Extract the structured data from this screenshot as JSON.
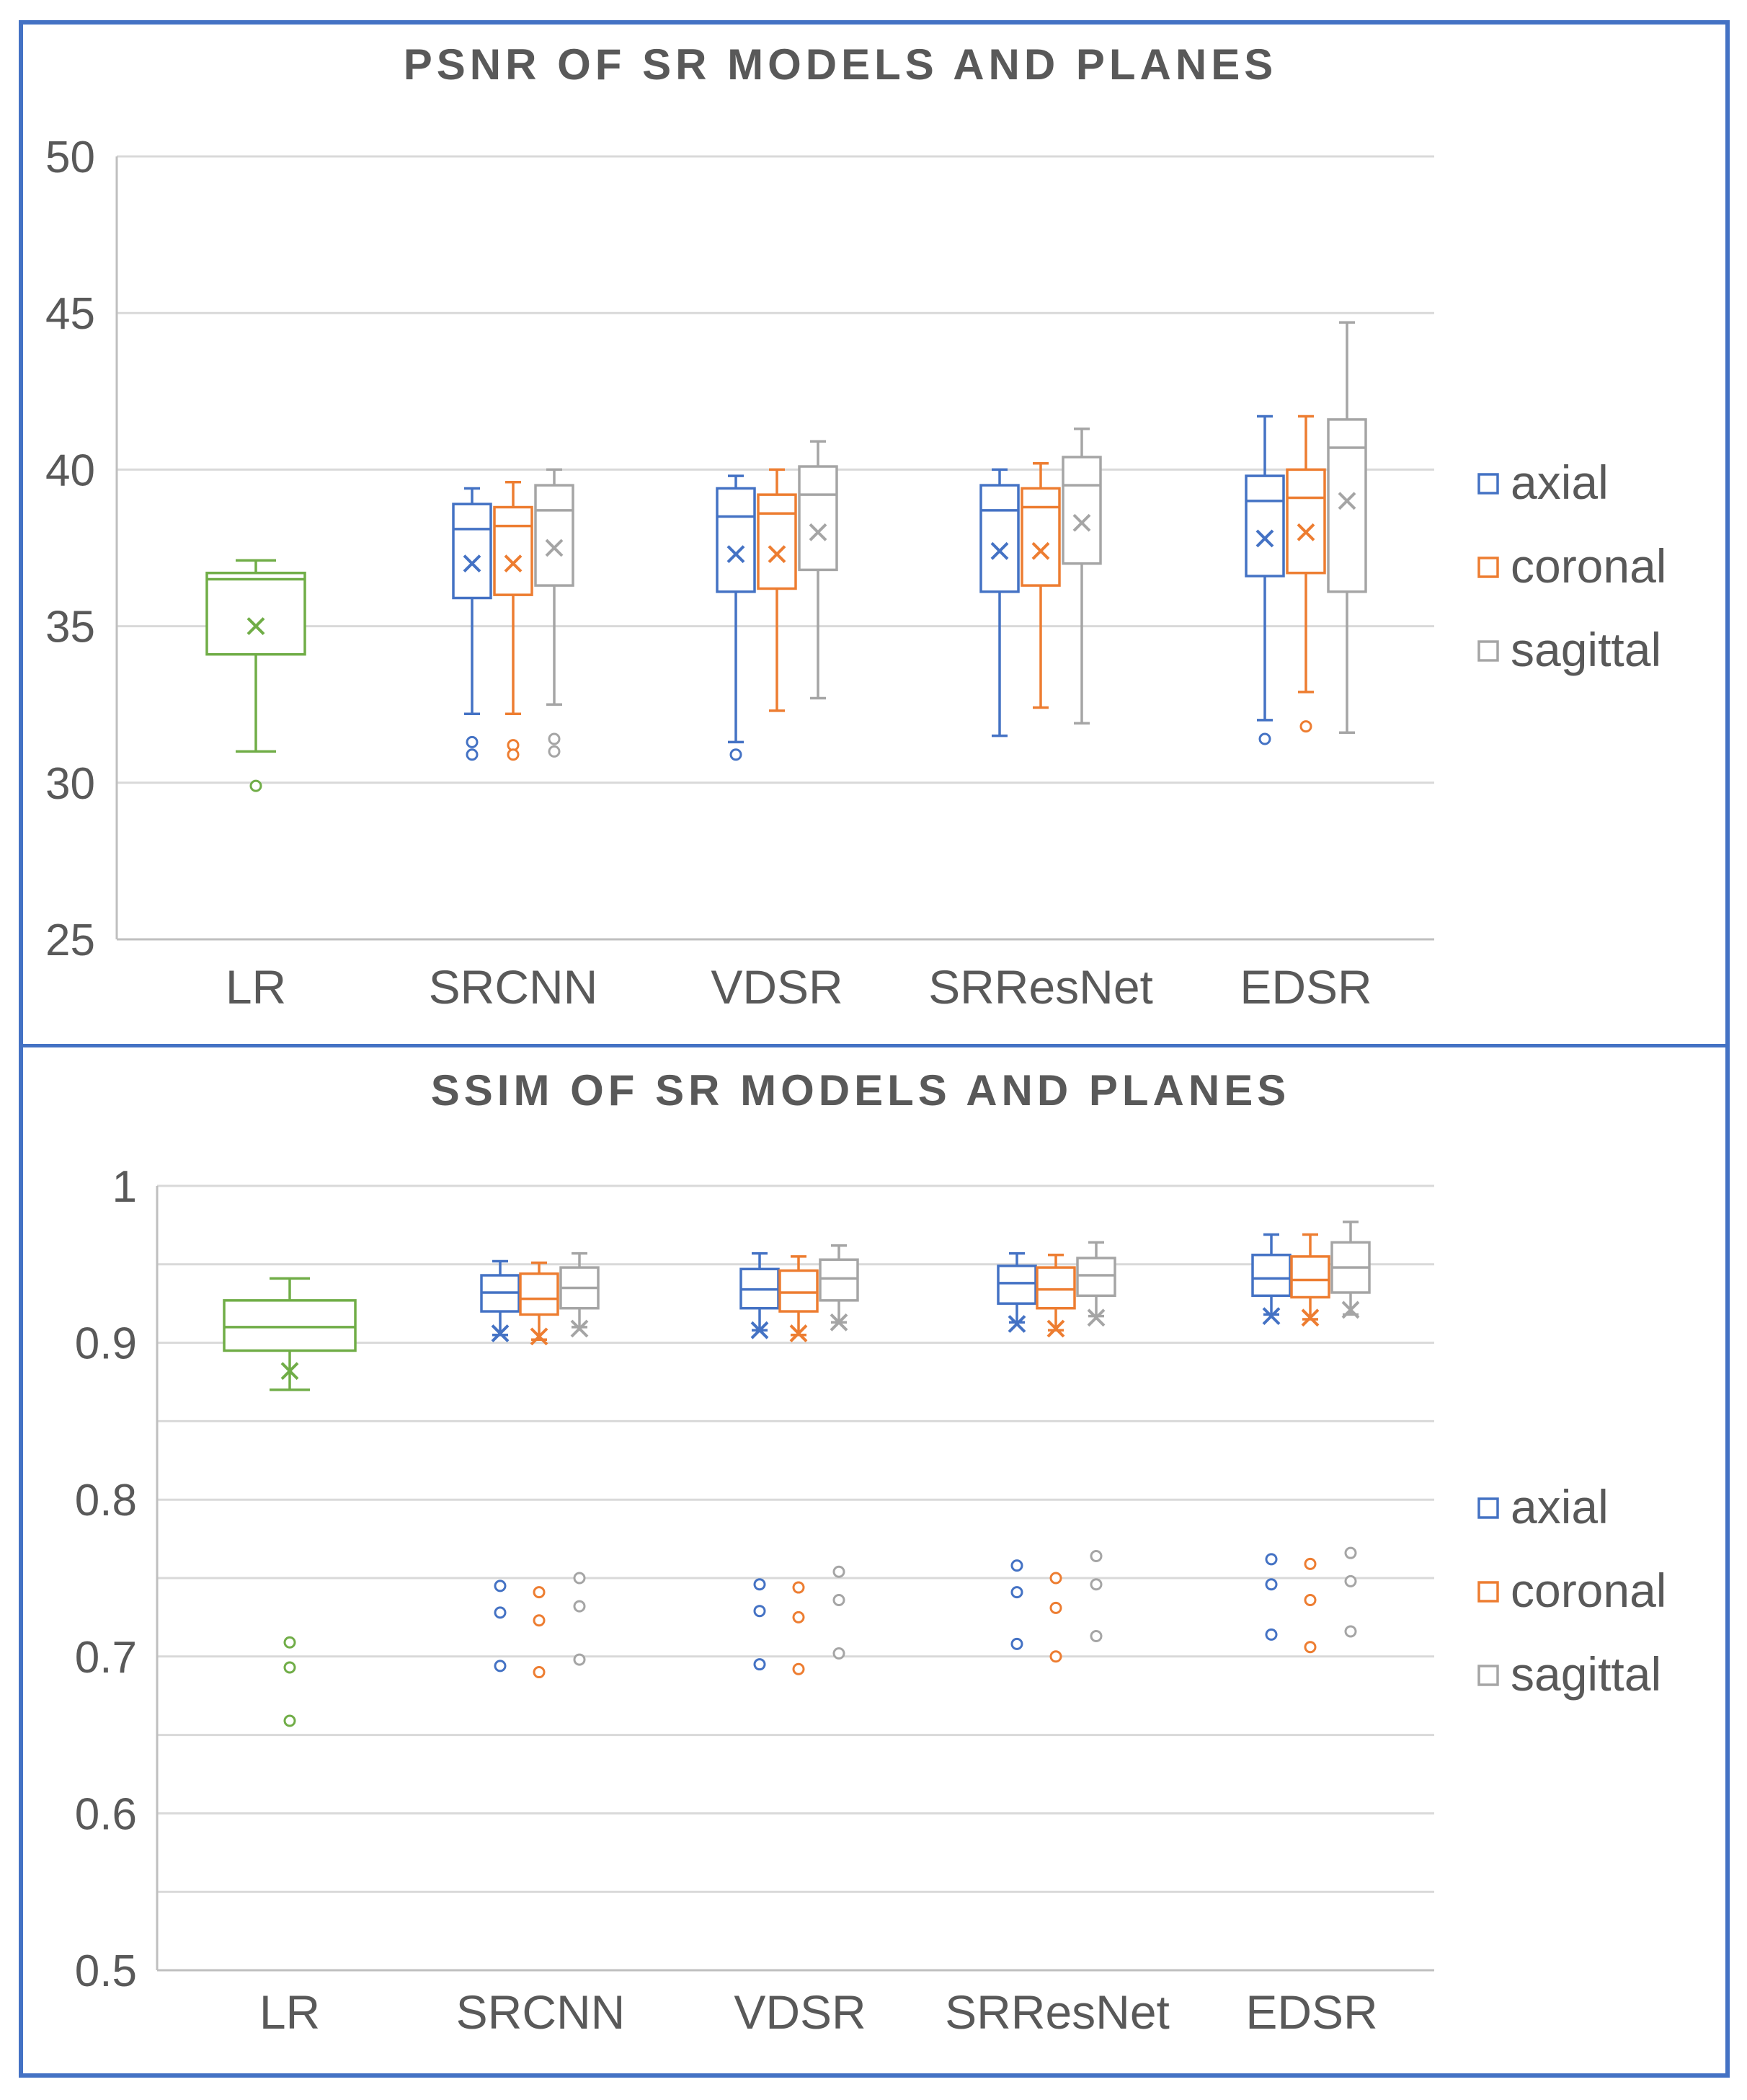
{
  "colors": {
    "axial": "#4472C4",
    "coronal": "#ED7D31",
    "sagittal": "#A5A5A5",
    "lr": "#70AD47",
    "grid": "#D9D9D9",
    "axis": "#BFBFBF",
    "text": "#595959",
    "frame": "#4472C4"
  },
  "chart_data": [
    {
      "type": "box",
      "title": "PSNR OF SR MODELS AND PLANES",
      "ylim": [
        25,
        50
      ],
      "yticks": [
        25,
        30,
        35,
        40,
        45,
        50
      ],
      "ytick_labels": [
        "25",
        "30",
        "35",
        "40",
        "45",
        "50"
      ],
      "gridlines": [
        30,
        35,
        40,
        45,
        50
      ],
      "categories": [
        "LR",
        "SRCNN",
        "VDSR",
        "SRResNet",
        "EDSR"
      ],
      "legend": [
        "axial",
        "coronal",
        "sagittal"
      ],
      "legend_position": "right",
      "boxes": [
        {
          "category": "LR",
          "series": "lr",
          "whisker_low": 31.0,
          "q1": 34.1,
          "median": 36.5,
          "q3": 36.7,
          "whisker_high": 37.1,
          "mean": 35.0,
          "outliers": [
            29.9
          ]
        },
        {
          "category": "SRCNN",
          "series": "axial",
          "whisker_low": 32.2,
          "q1": 35.9,
          "median": 38.1,
          "q3": 38.9,
          "whisker_high": 39.4,
          "mean": 37.0,
          "outliers": [
            31.3,
            30.9
          ]
        },
        {
          "category": "SRCNN",
          "series": "coronal",
          "whisker_low": 32.2,
          "q1": 36.0,
          "median": 38.2,
          "q3": 38.8,
          "whisker_high": 39.6,
          "mean": 37.0,
          "outliers": [
            31.2,
            30.9
          ]
        },
        {
          "category": "SRCNN",
          "series": "sagittal",
          "whisker_low": 32.5,
          "q1": 36.3,
          "median": 38.7,
          "q3": 39.5,
          "whisker_high": 40.0,
          "mean": 37.5,
          "outliers": [
            31.4,
            31.0
          ]
        },
        {
          "category": "VDSR",
          "series": "axial",
          "whisker_low": 31.3,
          "q1": 36.1,
          "median": 38.5,
          "q3": 39.4,
          "whisker_high": 39.8,
          "mean": 37.3,
          "outliers": [
            30.9
          ]
        },
        {
          "category": "VDSR",
          "series": "coronal",
          "whisker_low": 32.3,
          "q1": 36.2,
          "median": 38.6,
          "q3": 39.2,
          "whisker_high": 40.0,
          "mean": 37.3,
          "outliers": []
        },
        {
          "category": "VDSR",
          "series": "sagittal",
          "whisker_low": 32.7,
          "q1": 36.8,
          "median": 39.2,
          "q3": 40.1,
          "whisker_high": 40.9,
          "mean": 38.0,
          "outliers": []
        },
        {
          "category": "SRResNet",
          "series": "axial",
          "whisker_low": 31.5,
          "q1": 36.1,
          "median": 38.7,
          "q3": 39.5,
          "whisker_high": 40.0,
          "mean": 37.4,
          "outliers": []
        },
        {
          "category": "SRResNet",
          "series": "coronal",
          "whisker_low": 32.4,
          "q1": 36.3,
          "median": 38.8,
          "q3": 39.4,
          "whisker_high": 40.2,
          "mean": 37.4,
          "outliers": []
        },
        {
          "category": "SRResNet",
          "series": "sagittal",
          "whisker_low": 31.9,
          "q1": 37.0,
          "median": 39.5,
          "q3": 40.4,
          "whisker_high": 41.3,
          "mean": 38.3,
          "outliers": []
        },
        {
          "category": "EDSR",
          "series": "axial",
          "whisker_low": 32.0,
          "q1": 36.6,
          "median": 39.0,
          "q3": 39.8,
          "whisker_high": 41.7,
          "mean": 37.8,
          "outliers": [
            31.4
          ]
        },
        {
          "category": "EDSR",
          "series": "coronal",
          "whisker_low": 32.9,
          "q1": 36.7,
          "median": 39.1,
          "q3": 40.0,
          "whisker_high": 41.7,
          "mean": 38.0,
          "outliers": [
            31.8
          ]
        },
        {
          "category": "EDSR",
          "series": "sagittal",
          "whisker_low": 31.6,
          "q1": 36.1,
          "median": 40.7,
          "q3": 41.6,
          "whisker_high": 44.7,
          "mean": 39.0,
          "outliers": []
        }
      ]
    },
    {
      "type": "box",
      "title": "SSIM OF SR MODELS AND PLANES",
      "ylim": [
        0.5,
        1.0
      ],
      "yticks": [
        0.5,
        0.6,
        0.7,
        0.8,
        0.9,
        1.0
      ],
      "ytick_labels": [
        "0.5",
        "0.6",
        "0.7",
        "0.8",
        "0.9",
        "1"
      ],
      "gridlines": [
        0.55,
        0.6,
        0.65,
        0.7,
        0.75,
        0.8,
        0.85,
        0.9,
        0.95,
        1.0
      ],
      "categories": [
        "LR",
        "SRCNN",
        "VDSR",
        "SRResNet",
        "EDSR"
      ],
      "legend": [
        "axial",
        "coronal",
        "sagittal"
      ],
      "legend_position": "right",
      "boxes": [
        {
          "category": "LR",
          "series": "lr",
          "whisker_low": 0.87,
          "q1": 0.895,
          "median": 0.91,
          "q3": 0.927,
          "whisker_high": 0.941,
          "mean": 0.882,
          "outliers": [
            0.709,
            0.693,
            0.659
          ]
        },
        {
          "category": "SRCNN",
          "series": "axial",
          "whisker_low": 0.905,
          "q1": 0.92,
          "median": 0.932,
          "q3": 0.943,
          "whisker_high": 0.952,
          "mean": 0.906,
          "outliers": [
            0.745,
            0.728,
            0.694
          ]
        },
        {
          "category": "SRCNN",
          "series": "coronal",
          "whisker_low": 0.902,
          "q1": 0.918,
          "median": 0.928,
          "q3": 0.944,
          "whisker_high": 0.951,
          "mean": 0.904,
          "outliers": [
            0.741,
            0.723,
            0.69
          ]
        },
        {
          "category": "SRCNN",
          "series": "sagittal",
          "whisker_low": 0.91,
          "q1": 0.922,
          "median": 0.935,
          "q3": 0.948,
          "whisker_high": 0.957,
          "mean": 0.909,
          "outliers": [
            0.75,
            0.732,
            0.698
          ]
        },
        {
          "category": "VDSR",
          "series": "axial",
          "whisker_low": 0.908,
          "q1": 0.922,
          "median": 0.934,
          "q3": 0.947,
          "whisker_high": 0.957,
          "mean": 0.908,
          "outliers": [
            0.746,
            0.729,
            0.695
          ]
        },
        {
          "category": "VDSR",
          "series": "coronal",
          "whisker_low": 0.905,
          "q1": 0.92,
          "median": 0.932,
          "q3": 0.946,
          "whisker_high": 0.955,
          "mean": 0.906,
          "outliers": [
            0.744,
            0.725,
            0.692
          ]
        },
        {
          "category": "VDSR",
          "series": "sagittal",
          "whisker_low": 0.913,
          "q1": 0.927,
          "median": 0.941,
          "q3": 0.953,
          "whisker_high": 0.962,
          "mean": 0.913,
          "outliers": [
            0.754,
            0.736,
            0.702
          ]
        },
        {
          "category": "SRResNet",
          "series": "axial",
          "whisker_low": 0.913,
          "q1": 0.925,
          "median": 0.938,
          "q3": 0.949,
          "whisker_high": 0.957,
          "mean": 0.912,
          "outliers": [
            0.758,
            0.741,
            0.708
          ]
        },
        {
          "category": "SRResNet",
          "series": "coronal",
          "whisker_low": 0.908,
          "q1": 0.922,
          "median": 0.934,
          "q3": 0.948,
          "whisker_high": 0.956,
          "mean": 0.909,
          "outliers": [
            0.75,
            0.731,
            0.7
          ]
        },
        {
          "category": "SRResNet",
          "series": "sagittal",
          "whisker_low": 0.917,
          "q1": 0.93,
          "median": 0.943,
          "q3": 0.954,
          "whisker_high": 0.964,
          "mean": 0.916,
          "outliers": [
            0.764,
            0.746,
            0.713
          ]
        },
        {
          "category": "EDSR",
          "series": "axial",
          "whisker_low": 0.918,
          "q1": 0.93,
          "median": 0.941,
          "q3": 0.956,
          "whisker_high": 0.969,
          "mean": 0.917,
          "outliers": [
            0.762,
            0.746,
            0.714
          ]
        },
        {
          "category": "EDSR",
          "series": "coronal",
          "whisker_low": 0.915,
          "q1": 0.929,
          "median": 0.94,
          "q3": 0.955,
          "whisker_high": 0.969,
          "mean": 0.916,
          "outliers": [
            0.759,
            0.736,
            0.706
          ]
        },
        {
          "category": "EDSR",
          "series": "sagittal",
          "whisker_low": 0.918,
          "q1": 0.932,
          "median": 0.948,
          "q3": 0.964,
          "whisker_high": 0.977,
          "mean": 0.921,
          "outliers": [
            0.766,
            0.748,
            0.716
          ]
        }
      ]
    }
  ]
}
